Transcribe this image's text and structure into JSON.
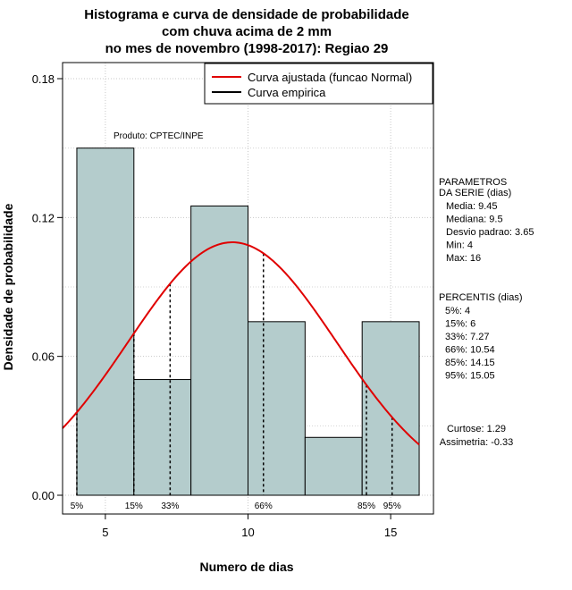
{
  "chart_data": {
    "type": "bar",
    "title_lines": [
      "Histograma e curva de densidade de probabilidade",
      "com chuva acima de 2 mm",
      "no mes de novembro (1998-2017): Regiao 29"
    ],
    "xlabel": "Numero de dias",
    "ylabel": "Densidade de probabilidade",
    "xlim": [
      3.5,
      16.5
    ],
    "ylim": [
      0,
      0.18
    ],
    "x_ticks": [
      5,
      10,
      15
    ],
    "y_ticks": [
      0.0,
      0.06,
      0.12,
      0.18
    ],
    "y_tick_labels": [
      "0.00",
      "0.06",
      "0.12",
      "0.18"
    ],
    "grid": true,
    "bars": [
      {
        "x0": 4,
        "x1": 6,
        "density": 0.15
      },
      {
        "x0": 6,
        "x1": 8,
        "density": 0.05
      },
      {
        "x0": 8,
        "x1": 10,
        "density": 0.125
      },
      {
        "x0": 10,
        "x1": 12,
        "density": 0.075
      },
      {
        "x0": 12,
        "x1": 14,
        "density": 0.025
      },
      {
        "x0": 14,
        "x1": 16,
        "density": 0.075
      }
    ],
    "bar_color": "#b4cccc",
    "normal_curve": {
      "mean": 9.45,
      "sd": 3.65,
      "color": "#e00000"
    },
    "legend": [
      {
        "label": "Curva ajustada (funcao Normal)",
        "color": "#e00000"
      },
      {
        "label": "Curva empirica",
        "color": "#000000"
      }
    ],
    "legend_position": "top-right",
    "percentile_lines": [
      {
        "label": "5%",
        "x": 4
      },
      {
        "label": "15%",
        "x": 6
      },
      {
        "label": "33%",
        "x": 7.27
      },
      {
        "label": "66%",
        "x": 10.54
      },
      {
        "label": "85%",
        "x": 14.15
      },
      {
        "label": "95%",
        "x": 15.05
      }
    ],
    "annotation": "Produto: CPTEC/INPE",
    "parametros": {
      "header": [
        "PARAMETROS",
        "DA SERIE (dias)"
      ],
      "lines": [
        "Media: 9.45",
        "Mediana: 9.5",
        "Desvio padrao: 3.65",
        "Min: 4",
        "Max: 16"
      ]
    },
    "percentis": {
      "header": "PERCENTIS (dias)",
      "lines": [
        "5%: 4",
        "15%: 6",
        "33%: 7.27",
        "66%: 10.54",
        "85%: 14.15",
        "95%: 15.05"
      ]
    },
    "shape": [
      "Curtose: 1.29",
      "Assimetria: -0.33"
    ]
  }
}
